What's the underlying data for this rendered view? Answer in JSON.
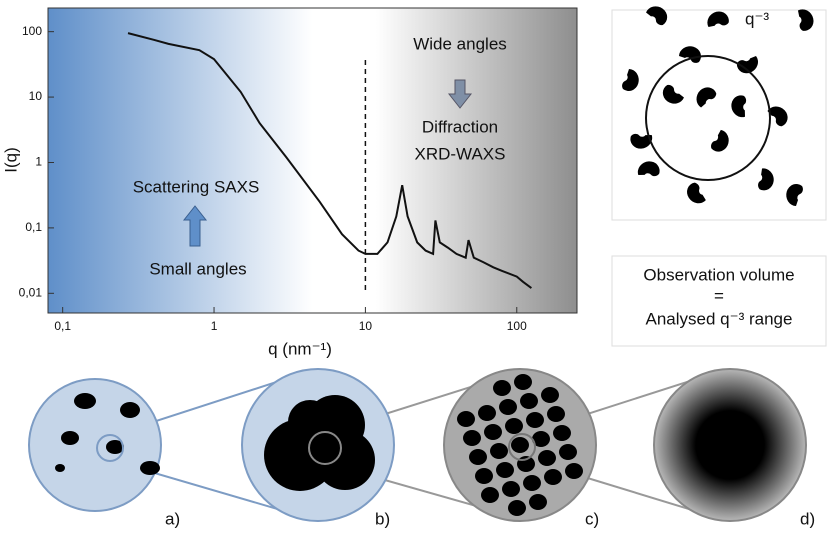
{
  "chart_data": {
    "type": "line",
    "x_label": "q (nm⁻¹)",
    "y_label": "I(q)",
    "xscale": "log",
    "yscale": "log",
    "xlim": [
      0.08,
      250
    ],
    "ylim": [
      0.005,
      230
    ],
    "xticks": [
      {
        "value": 0.1,
        "label": "0,1"
      },
      1,
      10,
      100
    ],
    "yticks": [
      {
        "value": 0.01,
        "label": "0,01"
      },
      {
        "value": 0.1,
        "label": "0,1"
      },
      1,
      10,
      100
    ],
    "vline": 10,
    "annotations": [
      "Wide angles",
      "Diffraction",
      "XRD-WAXS",
      "Scattering SAXS",
      "Small angles"
    ],
    "x": [
      0.27,
      0.4,
      0.5,
      0.8,
      1,
      1.5,
      2,
      3,
      5,
      7,
      9,
      10,
      12,
      14,
      16,
      17.5,
      19,
      22,
      25,
      28,
      29,
      31,
      35,
      40,
      46,
      48,
      52,
      60,
      70,
      80,
      100,
      110,
      125
    ],
    "series": [
      {
        "color": "#111111",
        "values": [
          95,
          75,
          65,
          52,
          38,
          12,
          4,
          1.2,
          0.25,
          0.08,
          0.045,
          0.04,
          0.04,
          0.06,
          0.15,
          0.45,
          0.15,
          0.06,
          0.045,
          0.04,
          0.13,
          0.06,
          0.05,
          0.04,
          0.035,
          0.065,
          0.035,
          0.03,
          0.025,
          0.022,
          0.018,
          0.015,
          0.012
        ]
      }
    ]
  },
  "inset": {
    "exponent_label": "q⁻³",
    "caption": [
      "Observation volume",
      "=",
      "Analysed q⁻³ range"
    ]
  },
  "panels": [
    "a)",
    "b)",
    "c)",
    "d)"
  ]
}
